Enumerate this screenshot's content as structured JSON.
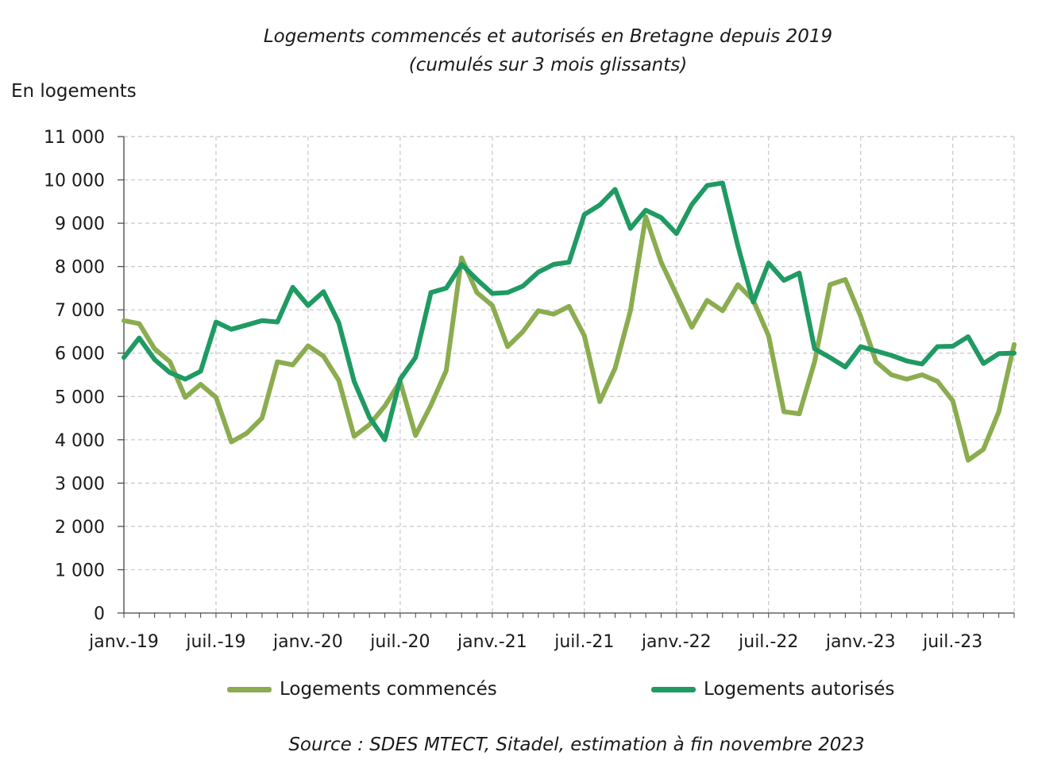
{
  "title_line1": "Logements commencés et autorisés en Bretagne depuis 2019",
  "title_line2": "(cumulés sur 3 mois glissants)",
  "source": "Source : SDES MTECT, Sitadel, estimation à fin novembre 2023",
  "chart_data": {
    "type": "line",
    "title": "Logements commencés et autorisés en Bretagne depuis 2019 (cumulés sur 3 mois glissants)",
    "ylabel": "En logements",
    "xlabel": "",
    "ylim": [
      0,
      11000
    ],
    "yticks": [
      0,
      1000,
      2000,
      3000,
      4000,
      5000,
      6000,
      7000,
      8000,
      9000,
      10000,
      11000
    ],
    "ytick_labels": [
      "0",
      "1 000",
      "2 000",
      "3 000",
      "4 000",
      "5 000",
      "6 000",
      "7 000",
      "8 000",
      "9 000",
      "10 000",
      "11 000"
    ],
    "x_tick_labels": [
      "janv.-19",
      "juil.-19",
      "janv.-20",
      "juil.-20",
      "janv.-21",
      "juil.-21",
      "janv.-22",
      "juil.-22",
      "janv.-23",
      "juil.-23"
    ],
    "x_tick_month_index": [
      0,
      6,
      12,
      18,
      24,
      30,
      36,
      42,
      48,
      54
    ],
    "x_start": "janv.-19",
    "x_end": "nov.-23",
    "grid": true,
    "legend_position": "bottom",
    "series": [
      {
        "name": "Logements commencés",
        "color": "#8bac4f",
        "values": [
          6750,
          6680,
          6100,
          5800,
          4980,
          5280,
          4980,
          3950,
          4150,
          4500,
          5800,
          5730,
          6170,
          5930,
          5370,
          4080,
          4350,
          4780,
          5350,
          4100,
          4800,
          5600,
          8200,
          7400,
          7100,
          6150,
          6500,
          6980,
          6900,
          7080,
          6400,
          4880,
          5650,
          6980,
          9150,
          8100,
          7350,
          6600,
          7220,
          6980,
          7580,
          7220,
          6400,
          4650,
          4600,
          5800,
          7580,
          7700,
          6850,
          5800,
          5500,
          5400,
          5500,
          5350,
          4900,
          3530,
          3780,
          4650,
          6200
        ]
      },
      {
        "name": "Logements autorisés",
        "color": "#1f9a63",
        "values": [
          5900,
          6350,
          5850,
          5550,
          5400,
          5580,
          6720,
          6550,
          6650,
          6750,
          6720,
          7520,
          7100,
          7420,
          6700,
          5350,
          4520,
          4000,
          5400,
          5900,
          7400,
          7500,
          8050,
          7700,
          7380,
          7400,
          7550,
          7870,
          8050,
          8100,
          9200,
          9420,
          9780,
          8880,
          9300,
          9130,
          8760,
          9430,
          9870,
          9930,
          8480,
          7180,
          8080,
          7680,
          7850,
          6100,
          5900,
          5680,
          6150,
          6050,
          5950,
          5820,
          5750,
          6150,
          6160,
          6380,
          5760,
          5990,
          6000
        ]
      }
    ]
  }
}
